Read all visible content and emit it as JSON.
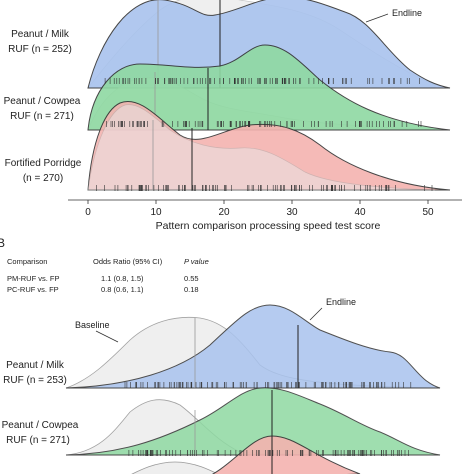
{
  "chart_data": [
    {
      "panel": "",
      "type": "ridgeline-density",
      "xlabel": "Pattern comparison processing speed test score",
      "xticks": [
        0,
        10,
        20,
        30,
        40,
        50
      ],
      "xlim": [
        0,
        55
      ],
      "annotations": [
        "Endline"
      ],
      "groups": [
        {
          "label_line1": "Peanut / Milk",
          "label_line2": "RUF (n = 252)",
          "color": "#a9c3ee",
          "median_endline": 20,
          "median_baseline": 10.5
        },
        {
          "label_line1": "Peanut / Cowpea",
          "label_line2": "RUF (n = 271)",
          "color": "#8fd9a2",
          "median_endline": 18,
          "median_baseline": 10.5
        },
        {
          "label_line1": "Fortified Porridge",
          "label_line2": "(n = 270)",
          "color": "#f4b3b0",
          "median_endline": 16,
          "median_baseline": 10
        }
      ],
      "series": [
        {
          "x": [
            0,
            5,
            10,
            15,
            20,
            25,
            30,
            35,
            40,
            45,
            50,
            54
          ],
          "values": [
            0.02,
            0.12,
            0.1,
            0.08,
            0.1,
            0.08,
            0.07,
            0.05,
            0.04,
            0.03,
            0.02,
            0.01
          ]
        },
        {
          "x": [
            0,
            5,
            10,
            15,
            20,
            25,
            30,
            35,
            40,
            45,
            50,
            54
          ],
          "values": [
            0.015,
            0.07,
            0.06,
            0.045,
            0.05,
            0.06,
            0.045,
            0.025,
            0.015,
            0.008,
            0.003,
            0.001
          ]
        },
        {
          "x": [
            0,
            5,
            10,
            15,
            20,
            25,
            30,
            35,
            40,
            45,
            50,
            54
          ],
          "values": [
            0.02,
            0.05,
            0.035,
            0.035,
            0.045,
            0.05,
            0.04,
            0.02,
            0.01,
            0.005,
            0.002,
            0.001
          ]
        }
      ]
    },
    {
      "panel": "B",
      "type": "ridgeline-density",
      "annotations": [
        "Baseline",
        "Endline"
      ],
      "table": {
        "headers": [
          "Comparison",
          "Odds Ratio (95% CI)",
          "P value"
        ],
        "rows": [
          [
            "PM-RUF vs. FP",
            "1.1 (0.8, 1.5)",
            "0.55"
          ],
          [
            "PC-RUF vs. FP",
            "0.8 (0.6, 1.1)",
            "0.18"
          ]
        ]
      },
      "groups": [
        {
          "label_line1": "Peanut / Milk",
          "label_line2": "RUF (n = 253)",
          "color": "#a9c3ee",
          "median_endline": 30,
          "median_baseline": 14
        },
        {
          "label_line1": "Peanut / Cowpea",
          "label_line2": "RUF (n = 271)",
          "color": "#8fd9a2",
          "median_endline": 22,
          "median_baseline": 14
        }
      ]
    }
  ],
  "panel_b_label": "B"
}
